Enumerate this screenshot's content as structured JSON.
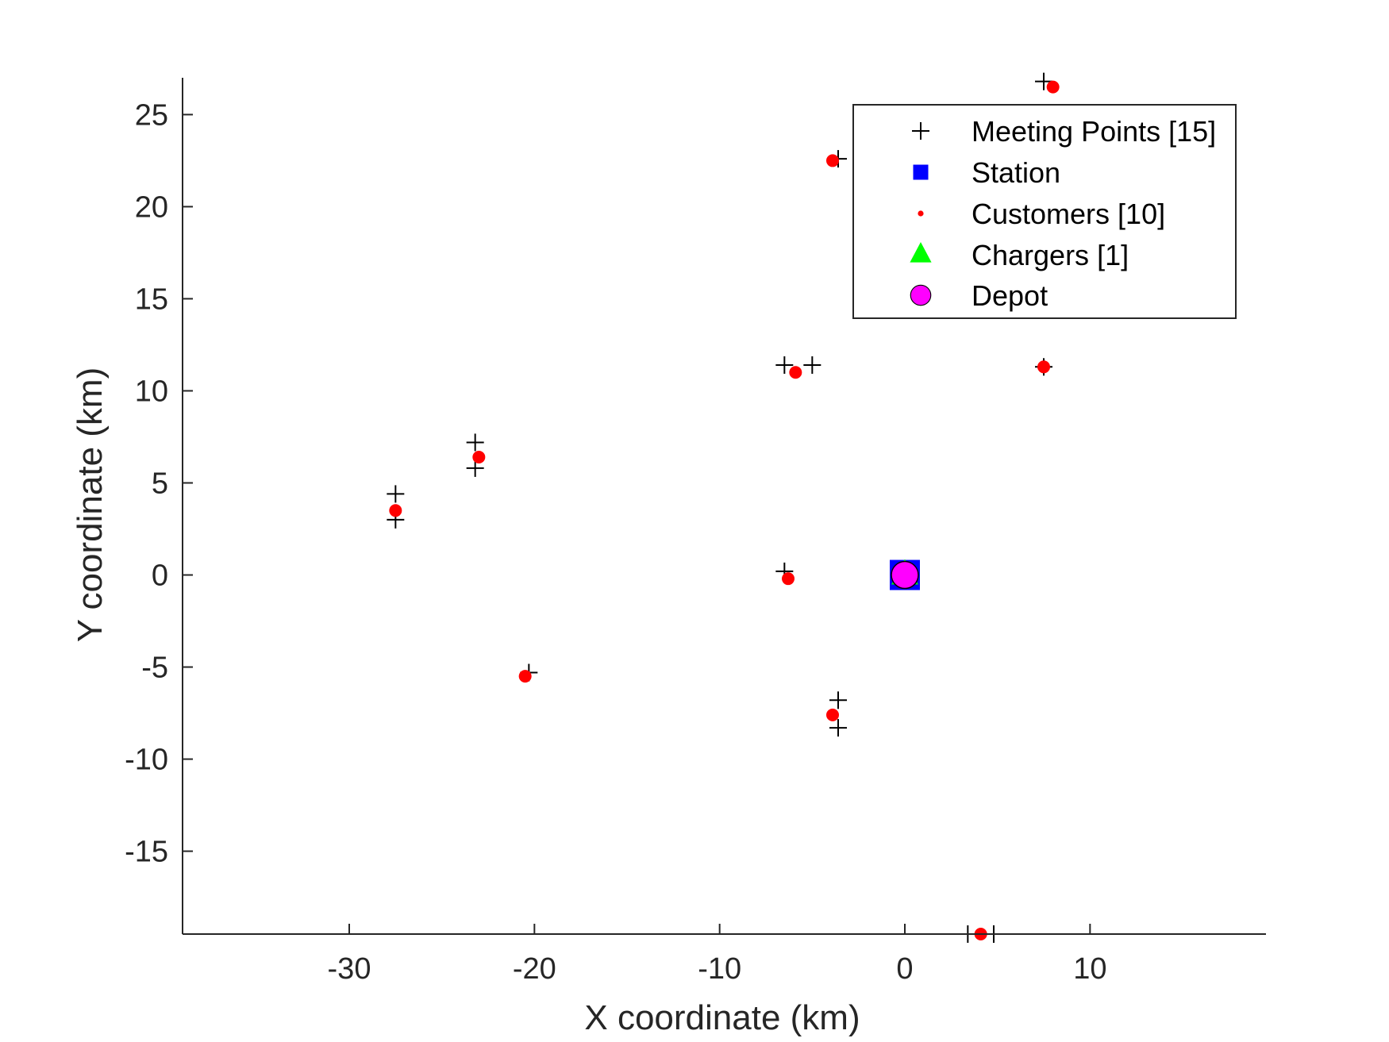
{
  "chart_data": {
    "type": "scatter",
    "title": "",
    "xlabel": "X coordinate (km)",
    "ylabel": "Y coordinate (km)",
    "xlim": [
      -39,
      19.5
    ],
    "ylim": [
      -19.5,
      27
    ],
    "xticks": [
      -30,
      -20,
      -10,
      0,
      10
    ],
    "yticks": [
      -15,
      -10,
      -5,
      0,
      5,
      10,
      15,
      20,
      25
    ],
    "grid": false,
    "legend_position": "top-right",
    "series": [
      {
        "name": "Meeting Points [15]",
        "marker": "plus",
        "color": "#000000",
        "points": [
          [
            7.5,
            26.8
          ],
          [
            -3.6,
            22.6
          ],
          [
            -6.5,
            11.4
          ],
          [
            -5.0,
            11.4
          ],
          [
            7.5,
            11.3
          ],
          [
            -23.2,
            7.2
          ],
          [
            -23.2,
            5.8
          ],
          [
            -27.5,
            4.4
          ],
          [
            -27.5,
            3.0
          ],
          [
            -6.5,
            0.2
          ],
          [
            -20.3,
            -5.3
          ],
          [
            -3.6,
            -6.8
          ],
          [
            -3.6,
            -8.3
          ],
          [
            3.4,
            -19.5
          ],
          [
            4.8,
            -19.5
          ]
        ]
      },
      {
        "name": "Station",
        "marker": "square",
        "color": "#0000FF",
        "points": [
          [
            0,
            0
          ]
        ]
      },
      {
        "name": "Customers [10]",
        "marker": "dot",
        "color": "#FF0000",
        "points": [
          [
            8.0,
            26.5
          ],
          [
            -3.9,
            22.5
          ],
          [
            -5.9,
            11.0
          ],
          [
            7.5,
            11.3
          ],
          [
            -23.0,
            6.4
          ],
          [
            -27.5,
            3.5
          ],
          [
            -6.3,
            -0.2
          ],
          [
            -20.5,
            -5.5
          ],
          [
            -3.9,
            -7.6
          ],
          [
            4.1,
            -19.5
          ]
        ]
      },
      {
        "name": "Chargers [1]",
        "marker": "triangle",
        "color": "#00FF00",
        "points": [
          [
            0,
            0
          ]
        ]
      },
      {
        "name": "Depot",
        "marker": "circle",
        "color": "#FF00FF",
        "points": [
          [
            0,
            0
          ]
        ]
      }
    ]
  }
}
